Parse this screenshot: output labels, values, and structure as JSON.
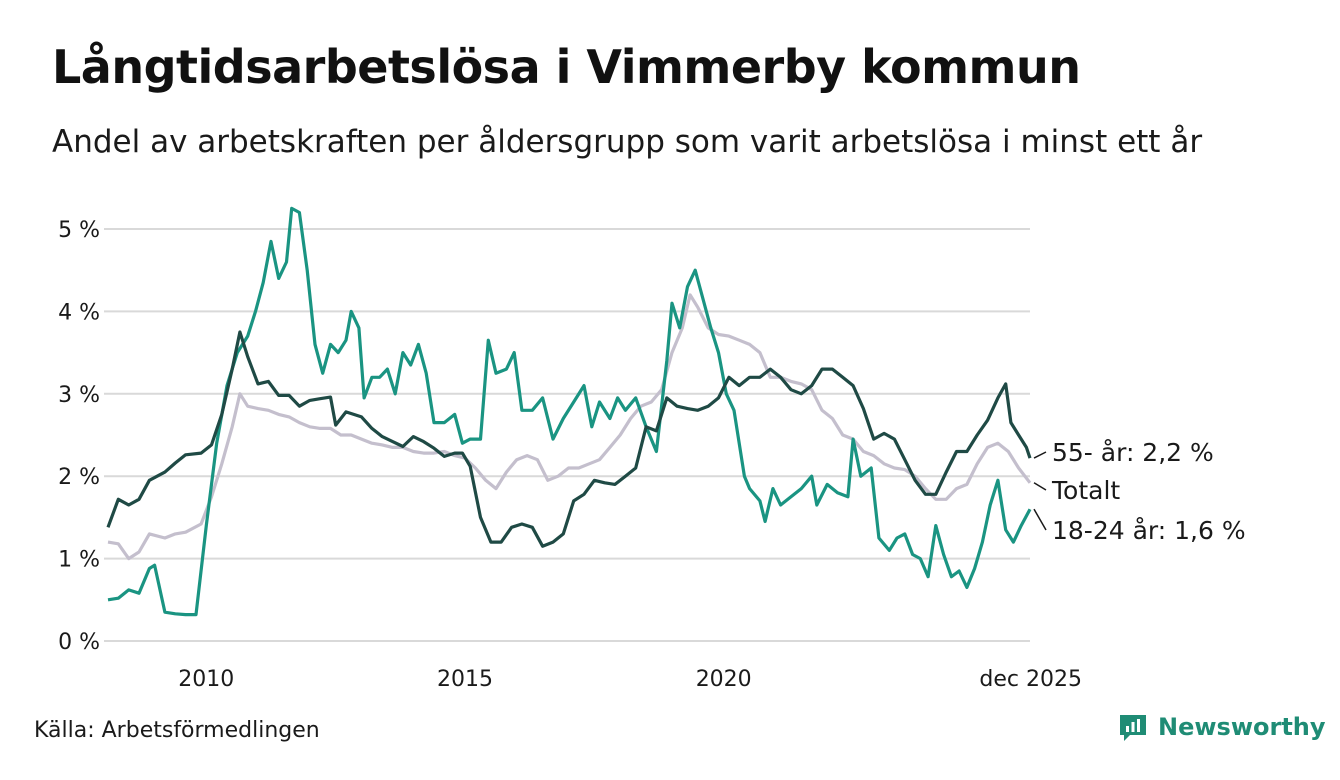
{
  "title": "Långtidsarbetslösa i Vimmerby kommun",
  "subtitle": "Andel av arbetskraften per åldersgrupp som varit arbetslösa i minst ett år",
  "source": "Källa: Arbetsförmedlingen",
  "brand": "Newsworthy",
  "colors": {
    "age55": "#1f4a45",
    "total": "#c4bfcd",
    "age18": "#1a9482",
    "grid": "#d9d9d9",
    "brand": "#1f8c75"
  },
  "chart_data": {
    "type": "line",
    "title": "Långtidsarbetslösa i Vimmerby kommun",
    "xlabel": "",
    "ylabel": "",
    "xlim": [
      2008.1,
      2025.92
    ],
    "ylim": [
      0,
      5.2
    ],
    "y_ticks": [
      0,
      1,
      2,
      3,
      4,
      5
    ],
    "y_tick_labels": [
      "0 %",
      "1 %",
      "2 %",
      "3 %",
      "4 %",
      "5 %"
    ],
    "x_ticks": [
      2010,
      2015,
      2020,
      2025.92
    ],
    "x_tick_labels": [
      "2010",
      "2015",
      "2020",
      "dec 2025"
    ],
    "grid": true,
    "series": [
      {
        "name": "55- år",
        "end_label": "55- år: 2,2 %",
        "color_key": "age55",
        "points": [
          [
            2008.1,
            1.38
          ],
          [
            2008.3,
            1.72
          ],
          [
            2008.5,
            1.65
          ],
          [
            2008.7,
            1.72
          ],
          [
            2008.9,
            1.95
          ],
          [
            2009.2,
            2.05
          ],
          [
            2009.4,
            2.16
          ],
          [
            2009.6,
            2.26
          ],
          [
            2009.9,
            2.28
          ],
          [
            2010.1,
            2.38
          ],
          [
            2010.3,
            2.75
          ],
          [
            2010.5,
            3.3
          ],
          [
            2010.65,
            3.75
          ],
          [
            2010.8,
            3.45
          ],
          [
            2011.0,
            3.12
          ],
          [
            2011.2,
            3.15
          ],
          [
            2011.4,
            2.98
          ],
          [
            2011.6,
            2.98
          ],
          [
            2011.8,
            2.85
          ],
          [
            2012.0,
            2.92
          ],
          [
            2012.2,
            2.94
          ],
          [
            2012.4,
            2.96
          ],
          [
            2012.5,
            2.62
          ],
          [
            2012.7,
            2.78
          ],
          [
            2013.0,
            2.72
          ],
          [
            2013.2,
            2.58
          ],
          [
            2013.4,
            2.48
          ],
          [
            2013.6,
            2.42
          ],
          [
            2013.8,
            2.36
          ],
          [
            2014.0,
            2.48
          ],
          [
            2014.2,
            2.42
          ],
          [
            2014.4,
            2.34
          ],
          [
            2014.6,
            2.24
          ],
          [
            2014.8,
            2.28
          ],
          [
            2014.95,
            2.28
          ],
          [
            2015.1,
            2.12
          ],
          [
            2015.3,
            1.5
          ],
          [
            2015.5,
            1.2
          ],
          [
            2015.7,
            1.2
          ],
          [
            2015.9,
            1.38
          ],
          [
            2016.1,
            1.42
          ],
          [
            2016.3,
            1.38
          ],
          [
            2016.5,
            1.15
          ],
          [
            2016.7,
            1.2
          ],
          [
            2016.9,
            1.3
          ],
          [
            2017.1,
            1.7
          ],
          [
            2017.3,
            1.78
          ],
          [
            2017.5,
            1.95
          ],
          [
            2017.7,
            1.92
          ],
          [
            2017.9,
            1.9
          ],
          [
            2018.1,
            2.0
          ],
          [
            2018.3,
            2.1
          ],
          [
            2018.5,
            2.6
          ],
          [
            2018.7,
            2.55
          ],
          [
            2018.9,
            2.95
          ],
          [
            2019.1,
            2.85
          ],
          [
            2019.3,
            2.82
          ],
          [
            2019.5,
            2.8
          ],
          [
            2019.7,
            2.85
          ],
          [
            2019.9,
            2.95
          ],
          [
            2020.1,
            3.2
          ],
          [
            2020.3,
            3.1
          ],
          [
            2020.5,
            3.2
          ],
          [
            2020.7,
            3.2
          ],
          [
            2020.9,
            3.3
          ],
          [
            2021.1,
            3.2
          ],
          [
            2021.3,
            3.05
          ],
          [
            2021.5,
            3.0
          ],
          [
            2021.7,
            3.1
          ],
          [
            2021.9,
            3.3
          ],
          [
            2022.1,
            3.3
          ],
          [
            2022.3,
            3.2
          ],
          [
            2022.5,
            3.1
          ],
          [
            2022.7,
            2.82
          ],
          [
            2022.9,
            2.45
          ],
          [
            2023.1,
            2.52
          ],
          [
            2023.3,
            2.45
          ],
          [
            2023.5,
            2.2
          ],
          [
            2023.7,
            1.95
          ],
          [
            2023.9,
            1.78
          ],
          [
            2024.1,
            1.78
          ],
          [
            2024.3,
            2.05
          ],
          [
            2024.5,
            2.3
          ],
          [
            2024.7,
            2.3
          ],
          [
            2024.9,
            2.5
          ],
          [
            2025.1,
            2.68
          ],
          [
            2025.3,
            2.95
          ],
          [
            2025.45,
            3.12
          ],
          [
            2025.55,
            2.65
          ],
          [
            2025.7,
            2.5
          ],
          [
            2025.85,
            2.35
          ],
          [
            2025.92,
            2.22
          ]
        ]
      },
      {
        "name": "Totalt",
        "end_label": "Totalt",
        "color_key": "total",
        "points": [
          [
            2008.1,
            1.2
          ],
          [
            2008.3,
            1.18
          ],
          [
            2008.5,
            1.0
          ],
          [
            2008.7,
            1.08
          ],
          [
            2008.9,
            1.3
          ],
          [
            2009.2,
            1.25
          ],
          [
            2009.4,
            1.3
          ],
          [
            2009.6,
            1.32
          ],
          [
            2009.9,
            1.42
          ],
          [
            2010.1,
            1.75
          ],
          [
            2010.3,
            2.15
          ],
          [
            2010.5,
            2.6
          ],
          [
            2010.65,
            3.0
          ],
          [
            2010.8,
            2.85
          ],
          [
            2011.0,
            2.82
          ],
          [
            2011.2,
            2.8
          ],
          [
            2011.4,
            2.75
          ],
          [
            2011.6,
            2.72
          ],
          [
            2011.8,
            2.65
          ],
          [
            2012.0,
            2.6
          ],
          [
            2012.2,
            2.58
          ],
          [
            2012.4,
            2.58
          ],
          [
            2012.6,
            2.5
          ],
          [
            2012.8,
            2.5
          ],
          [
            2013.0,
            2.45
          ],
          [
            2013.2,
            2.4
          ],
          [
            2013.4,
            2.38
          ],
          [
            2013.6,
            2.35
          ],
          [
            2013.8,
            2.35
          ],
          [
            2014.0,
            2.3
          ],
          [
            2014.2,
            2.28
          ],
          [
            2014.4,
            2.28
          ],
          [
            2014.6,
            2.3
          ],
          [
            2014.8,
            2.25
          ],
          [
            2015.0,
            2.22
          ],
          [
            2015.2,
            2.1
          ],
          [
            2015.4,
            1.95
          ],
          [
            2015.6,
            1.85
          ],
          [
            2015.8,
            2.05
          ],
          [
            2016.0,
            2.2
          ],
          [
            2016.2,
            2.25
          ],
          [
            2016.4,
            2.2
          ],
          [
            2016.6,
            1.95
          ],
          [
            2016.8,
            2.0
          ],
          [
            2017.0,
            2.1
          ],
          [
            2017.2,
            2.1
          ],
          [
            2017.4,
            2.15
          ],
          [
            2017.6,
            2.2
          ],
          [
            2017.8,
            2.35
          ],
          [
            2018.0,
            2.5
          ],
          [
            2018.2,
            2.7
          ],
          [
            2018.4,
            2.85
          ],
          [
            2018.6,
            2.9
          ],
          [
            2018.8,
            3.05
          ],
          [
            2019.0,
            3.5
          ],
          [
            2019.2,
            3.8
          ],
          [
            2019.35,
            4.2
          ],
          [
            2019.5,
            4.05
          ],
          [
            2019.7,
            3.8
          ],
          [
            2019.9,
            3.72
          ],
          [
            2020.1,
            3.7
          ],
          [
            2020.3,
            3.65
          ],
          [
            2020.5,
            3.6
          ],
          [
            2020.7,
            3.5
          ],
          [
            2020.9,
            3.2
          ],
          [
            2021.1,
            3.2
          ],
          [
            2021.3,
            3.15
          ],
          [
            2021.5,
            3.12
          ],
          [
            2021.7,
            3.05
          ],
          [
            2021.9,
            2.8
          ],
          [
            2022.1,
            2.7
          ],
          [
            2022.3,
            2.5
          ],
          [
            2022.5,
            2.45
          ],
          [
            2022.7,
            2.3
          ],
          [
            2022.9,
            2.25
          ],
          [
            2023.1,
            2.15
          ],
          [
            2023.3,
            2.1
          ],
          [
            2023.5,
            2.08
          ],
          [
            2023.7,
            2.0
          ],
          [
            2023.9,
            1.85
          ],
          [
            2024.1,
            1.72
          ],
          [
            2024.3,
            1.72
          ],
          [
            2024.5,
            1.85
          ],
          [
            2024.7,
            1.9
          ],
          [
            2024.9,
            2.15
          ],
          [
            2025.1,
            2.35
          ],
          [
            2025.3,
            2.4
          ],
          [
            2025.5,
            2.3
          ],
          [
            2025.7,
            2.1
          ],
          [
            2025.92,
            1.92
          ]
        ]
      },
      {
        "name": "18-24 år",
        "end_label": "18-24 år: 1,6 %",
        "color_key": "age18",
        "points": [
          [
            2008.1,
            0.5
          ],
          [
            2008.3,
            0.52
          ],
          [
            2008.5,
            0.62
          ],
          [
            2008.7,
            0.58
          ],
          [
            2008.9,
            0.88
          ],
          [
            2009.0,
            0.92
          ],
          [
            2009.2,
            0.35
          ],
          [
            2009.4,
            0.33
          ],
          [
            2009.6,
            0.32
          ],
          [
            2009.8,
            0.32
          ],
          [
            2010.0,
            1.4
          ],
          [
            2010.2,
            2.4
          ],
          [
            2010.4,
            3.1
          ],
          [
            2010.6,
            3.5
          ],
          [
            2010.8,
            3.7
          ],
          [
            2010.95,
            4.0
          ],
          [
            2011.1,
            4.35
          ],
          [
            2011.25,
            4.85
          ],
          [
            2011.4,
            4.4
          ],
          [
            2011.55,
            4.6
          ],
          [
            2011.65,
            5.25
          ],
          [
            2011.8,
            5.2
          ],
          [
            2011.95,
            4.5
          ],
          [
            2012.1,
            3.6
          ],
          [
            2012.25,
            3.25
          ],
          [
            2012.4,
            3.6
          ],
          [
            2012.55,
            3.5
          ],
          [
            2012.7,
            3.65
          ],
          [
            2012.8,
            4.0
          ],
          [
            2012.95,
            3.8
          ],
          [
            2013.05,
            2.95
          ],
          [
            2013.2,
            3.2
          ],
          [
            2013.35,
            3.2
          ],
          [
            2013.5,
            3.3
          ],
          [
            2013.65,
            3.0
          ],
          [
            2013.8,
            3.5
          ],
          [
            2013.95,
            3.35
          ],
          [
            2014.1,
            3.6
          ],
          [
            2014.25,
            3.25
          ],
          [
            2014.4,
            2.65
          ],
          [
            2014.6,
            2.65
          ],
          [
            2014.8,
            2.75
          ],
          [
            2014.95,
            2.4
          ],
          [
            2015.1,
            2.45
          ],
          [
            2015.3,
            2.45
          ],
          [
            2015.45,
            3.65
          ],
          [
            2015.6,
            3.25
          ],
          [
            2015.8,
            3.3
          ],
          [
            2015.95,
            3.5
          ],
          [
            2016.1,
            2.8
          ],
          [
            2016.3,
            2.8
          ],
          [
            2016.5,
            2.95
          ],
          [
            2016.7,
            2.45
          ],
          [
            2016.9,
            2.7
          ],
          [
            2017.1,
            2.9
          ],
          [
            2017.3,
            3.1
          ],
          [
            2017.45,
            2.6
          ],
          [
            2017.6,
            2.9
          ],
          [
            2017.8,
            2.7
          ],
          [
            2017.95,
            2.95
          ],
          [
            2018.1,
            2.8
          ],
          [
            2018.3,
            2.95
          ],
          [
            2018.5,
            2.6
          ],
          [
            2018.7,
            2.3
          ],
          [
            2018.9,
            3.4
          ],
          [
            2019.0,
            4.1
          ],
          [
            2019.15,
            3.8
          ],
          [
            2019.3,
            4.3
          ],
          [
            2019.45,
            4.5
          ],
          [
            2019.6,
            4.15
          ],
          [
            2019.75,
            3.8
          ],
          [
            2019.9,
            3.5
          ],
          [
            2020.05,
            3.0
          ],
          [
            2020.2,
            2.8
          ],
          [
            2020.4,
            2.0
          ],
          [
            2020.5,
            1.85
          ],
          [
            2020.7,
            1.7
          ],
          [
            2020.8,
            1.45
          ],
          [
            2020.95,
            1.85
          ],
          [
            2021.1,
            1.65
          ],
          [
            2021.3,
            1.75
          ],
          [
            2021.5,
            1.85
          ],
          [
            2021.7,
            2.0
          ],
          [
            2021.8,
            1.65
          ],
          [
            2022.0,
            1.9
          ],
          [
            2022.2,
            1.8
          ],
          [
            2022.4,
            1.75
          ],
          [
            2022.5,
            2.45
          ],
          [
            2022.65,
            2.0
          ],
          [
            2022.85,
            2.1
          ],
          [
            2023.0,
            1.25
          ],
          [
            2023.2,
            1.1
          ],
          [
            2023.35,
            1.25
          ],
          [
            2023.5,
            1.3
          ],
          [
            2023.65,
            1.05
          ],
          [
            2023.8,
            1.0
          ],
          [
            2023.95,
            0.78
          ],
          [
            2024.1,
            1.4
          ],
          [
            2024.25,
            1.05
          ],
          [
            2024.4,
            0.78
          ],
          [
            2024.55,
            0.85
          ],
          [
            2024.7,
            0.65
          ],
          [
            2024.85,
            0.88
          ],
          [
            2025.0,
            1.2
          ],
          [
            2025.15,
            1.65
          ],
          [
            2025.3,
            1.95
          ],
          [
            2025.45,
            1.35
          ],
          [
            2025.6,
            1.2
          ],
          [
            2025.75,
            1.4
          ],
          [
            2025.92,
            1.6
          ]
        ]
      }
    ]
  }
}
